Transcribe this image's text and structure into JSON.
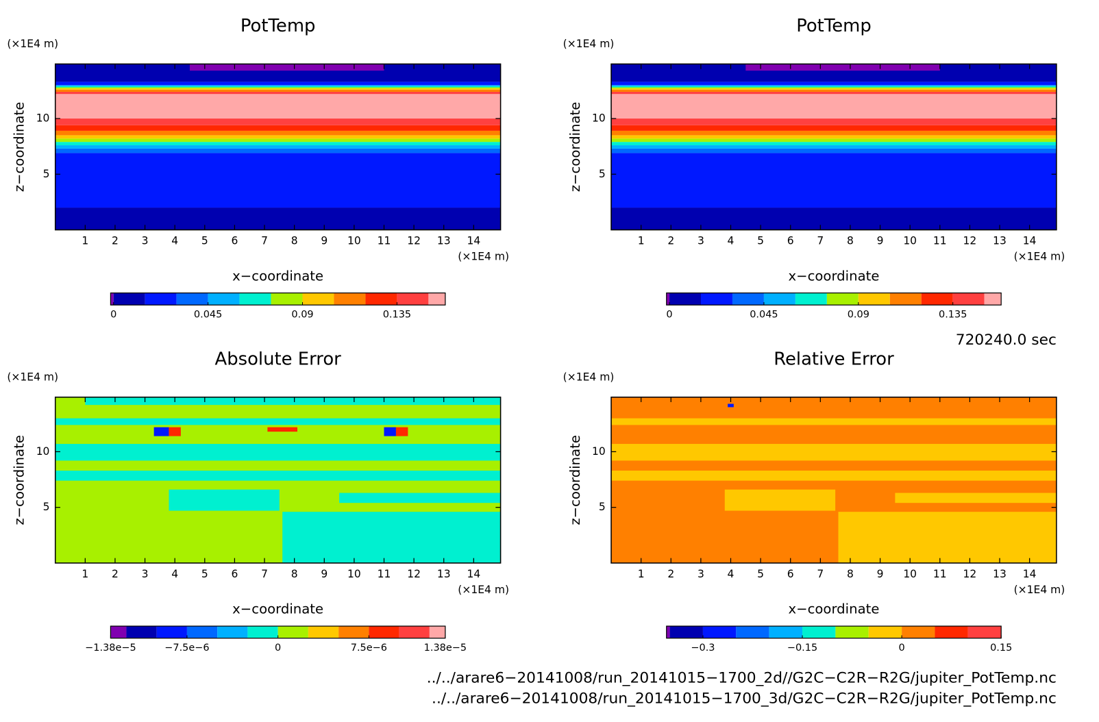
{
  "chart_data": [
    {
      "type": "contour",
      "title": "PotTemp",
      "xlabel": "x−coordinate",
      "ylabel": "z−coordinate",
      "xunit": "(×1E4 m)",
      "yunit": "(×1E4 m)",
      "xlim": [
        0,
        14.9
      ],
      "ylim": [
        0,
        14.9
      ],
      "xticks": [
        1,
        2,
        3,
        4,
        5,
        6,
        7,
        8,
        9,
        10,
        11,
        12,
        13,
        14
      ],
      "yticks": [
        5,
        10
      ],
      "colorbar": {
        "bins": [
          -0.0014,
          0,
          0.015,
          0.03,
          0.045,
          0.06,
          0.075,
          0.09,
          0.105,
          0.12,
          0.135,
          0.15,
          0.158
        ],
        "colors": [
          "#8000b0",
          "#0000b0",
          "#0018ff",
          "#0068ff",
          "#00b0ff",
          "#00f0d0",
          "#a8f000",
          "#ffc800",
          "#ff8000",
          "#ff2800",
          "#ff4040",
          "#ffa8a8"
        ],
        "ticks": [
          0,
          0.045,
          0.09,
          0.135
        ]
      },
      "bands": [
        {
          "x": [
            0,
            14.9
          ],
          "z": [
            0,
            2.0
          ],
          "value": 0.008
        },
        {
          "x": [
            0,
            14.9
          ],
          "z": [
            2.0,
            6.9
          ],
          "value": 0.022
        },
        {
          "x": [
            0,
            14.9
          ],
          "z": [
            6.9,
            7.3
          ],
          "value": 0.037
        },
        {
          "x": [
            0,
            14.9
          ],
          "z": [
            7.3,
            7.6
          ],
          "value": 0.052
        },
        {
          "x": [
            0,
            14.9
          ],
          "z": [
            7.6,
            7.9
          ],
          "value": 0.067
        },
        {
          "x": [
            0,
            14.9
          ],
          "z": [
            7.9,
            8.2
          ],
          "value": 0.082
        },
        {
          "x": [
            0,
            14.9
          ],
          "z": [
            8.2,
            8.5
          ],
          "value": 0.097
        },
        {
          "x": [
            0,
            14.9
          ],
          "z": [
            8.5,
            8.9
          ],
          "value": 0.112
        },
        {
          "x": [
            0,
            14.9
          ],
          "z": [
            8.9,
            9.4
          ],
          "value": 0.127
        },
        {
          "x": [
            0,
            14.9
          ],
          "z": [
            9.4,
            10.0
          ],
          "value": 0.142
        },
        {
          "x": [
            0,
            14.9
          ],
          "z": [
            10.0,
            12.2
          ],
          "value": 0.154
        },
        {
          "x": [
            0,
            14.9
          ],
          "z": [
            12.2,
            12.4
          ],
          "value": 0.142
        },
        {
          "x": [
            0,
            14.9
          ],
          "z": [
            12.4,
            12.6
          ],
          "value": 0.112
        },
        {
          "x": [
            0,
            14.9
          ],
          "z": [
            12.6,
            12.7
          ],
          "value": 0.097
        },
        {
          "x": [
            0,
            14.9
          ],
          "z": [
            12.7,
            12.8
          ],
          "value": 0.082
        },
        {
          "x": [
            0,
            14.9
          ],
          "z": [
            12.8,
            12.9
          ],
          "value": 0.067
        },
        {
          "x": [
            0,
            14.9
          ],
          "z": [
            12.9,
            13.0
          ],
          "value": 0.052
        },
        {
          "x": [
            0,
            14.9
          ],
          "z": [
            13.0,
            13.3
          ],
          "value": 0.022
        },
        {
          "x": [
            0,
            14.9
          ],
          "z": [
            13.3,
            14.9
          ],
          "value": 0.008
        },
        {
          "x": [
            4.5,
            11.0
          ],
          "z": [
            14.3,
            14.9
          ],
          "value": -0.0007
        }
      ]
    },
    {
      "type": "contour",
      "title": "PotTemp",
      "xlabel": "x−coordinate",
      "ylabel": "z−coordinate",
      "xunit": "(×1E4 m)",
      "yunit": "(×1E4 m)",
      "xlim": [
        0,
        14.9
      ],
      "ylim": [
        0,
        14.9
      ],
      "xticks": [
        1,
        2,
        3,
        4,
        5,
        6,
        7,
        8,
        9,
        10,
        11,
        12,
        13,
        14
      ],
      "yticks": [
        5,
        10
      ],
      "colorbar": {
        "bins": [
          -0.0014,
          0,
          0.015,
          0.03,
          0.045,
          0.06,
          0.075,
          0.09,
          0.105,
          0.12,
          0.135,
          0.15,
          0.158
        ],
        "colors": [
          "#8000b0",
          "#0000b0",
          "#0018ff",
          "#0068ff",
          "#00b0ff",
          "#00f0d0",
          "#a8f000",
          "#ffc800",
          "#ff8000",
          "#ff2800",
          "#ff4040",
          "#ffa8a8"
        ],
        "ticks": [
          0,
          0.045,
          0.09,
          0.135
        ]
      },
      "bands": [
        {
          "x": [
            0,
            14.9
          ],
          "z": [
            0,
            2.0
          ],
          "value": 0.008
        },
        {
          "x": [
            0,
            14.9
          ],
          "z": [
            2.0,
            6.9
          ],
          "value": 0.022
        },
        {
          "x": [
            0,
            14.9
          ],
          "z": [
            6.9,
            7.3
          ],
          "value": 0.037
        },
        {
          "x": [
            0,
            14.9
          ],
          "z": [
            7.3,
            7.6
          ],
          "value": 0.052
        },
        {
          "x": [
            0,
            14.9
          ],
          "z": [
            7.6,
            7.9
          ],
          "value": 0.067
        },
        {
          "x": [
            0,
            14.9
          ],
          "z": [
            7.9,
            8.2
          ],
          "value": 0.082
        },
        {
          "x": [
            0,
            14.9
          ],
          "z": [
            8.2,
            8.5
          ],
          "value": 0.097
        },
        {
          "x": [
            0,
            14.9
          ],
          "z": [
            8.5,
            8.9
          ],
          "value": 0.112
        },
        {
          "x": [
            0,
            14.9
          ],
          "z": [
            8.9,
            9.4
          ],
          "value": 0.127
        },
        {
          "x": [
            0,
            14.9
          ],
          "z": [
            9.4,
            10.0
          ],
          "value": 0.142
        },
        {
          "x": [
            0,
            14.9
          ],
          "z": [
            10.0,
            12.2
          ],
          "value": 0.154
        },
        {
          "x": [
            0,
            14.9
          ],
          "z": [
            12.2,
            12.4
          ],
          "value": 0.142
        },
        {
          "x": [
            0,
            14.9
          ],
          "z": [
            12.4,
            12.6
          ],
          "value": 0.112
        },
        {
          "x": [
            0,
            14.9
          ],
          "z": [
            12.6,
            12.7
          ],
          "value": 0.097
        },
        {
          "x": [
            0,
            14.9
          ],
          "z": [
            12.7,
            12.8
          ],
          "value": 0.082
        },
        {
          "x": [
            0,
            14.9
          ],
          "z": [
            12.8,
            12.9
          ],
          "value": 0.067
        },
        {
          "x": [
            0,
            14.9
          ],
          "z": [
            12.9,
            13.0
          ],
          "value": 0.052
        },
        {
          "x": [
            0,
            14.9
          ],
          "z": [
            13.0,
            13.3
          ],
          "value": 0.022
        },
        {
          "x": [
            0,
            14.9
          ],
          "z": [
            13.3,
            14.9
          ],
          "value": 0.008
        },
        {
          "x": [
            4.5,
            11.0
          ],
          "z": [
            14.3,
            14.9
          ],
          "value": -0.0007
        }
      ]
    },
    {
      "type": "contour",
      "title": "Absolute Error",
      "xlabel": "x−coordinate",
      "ylabel": "z−coordinate",
      "xunit": "(×1E4 m)",
      "yunit": "(×1E4 m)",
      "xlim": [
        0,
        14.9
      ],
      "ylim": [
        0,
        14.9
      ],
      "xticks": [
        1,
        2,
        3,
        4,
        5,
        6,
        7,
        8,
        9,
        10,
        11,
        12,
        13,
        14
      ],
      "yticks": [
        5,
        10
      ],
      "colorbar": {
        "bins": [
          -1.38e-05,
          -1.25e-05,
          -1e-05,
          -7.5e-06,
          -5e-06,
          -2.5e-06,
          0,
          2.5e-06,
          5e-06,
          7.5e-06,
          1e-05,
          1.25e-05,
          1.38e-05
        ],
        "colors": [
          "#8000b0",
          "#0000b0",
          "#0018ff",
          "#0068ff",
          "#00b0ff",
          "#00f0d0",
          "#a8f000",
          "#ffc800",
          "#ff8000",
          "#ff2800",
          "#ff4040",
          "#ffa8a8"
        ],
        "ticks": [
          {
            "value": -1.38e-05,
            "label": "−1.38e−5"
          },
          {
            "value": -7.5e-06,
            "label": "−7.5e−6"
          },
          0,
          {
            "value": 7.5e-06,
            "label": "7.5e−6"
          },
          {
            "value": 1.38e-05,
            "label": "1.38e−5"
          }
        ]
      },
      "bands": [
        {
          "x": [
            0,
            14.9
          ],
          "z": [
            0,
            14.9
          ],
          "value": 1e-06
        },
        {
          "x": [
            7.6,
            14.9
          ],
          "z": [
            0,
            4.6
          ],
          "value": -1e-06
        },
        {
          "x": [
            3.8,
            7.5
          ],
          "z": [
            4.7,
            6.6
          ],
          "value": -1e-06
        },
        {
          "x": [
            9.5,
            14.9
          ],
          "z": [
            5.4,
            6.3
          ],
          "value": -1e-06
        },
        {
          "x": [
            0,
            14.9
          ],
          "z": [
            7.4,
            8.3
          ],
          "value": -1e-06
        },
        {
          "x": [
            0,
            14.9
          ],
          "z": [
            9.2,
            10.7
          ],
          "value": -1e-06
        },
        {
          "x": [
            0,
            14.9
          ],
          "z": [
            12.4,
            13.0
          ],
          "value": -1e-06
        },
        {
          "x": [
            1.0,
            14.9
          ],
          "z": [
            14.2,
            14.9
          ],
          "value": -1e-06
        },
        {
          "x": [
            3.3,
            3.8
          ],
          "z": [
            11.4,
            12.2
          ],
          "value": -9e-06
        },
        {
          "x": [
            3.8,
            4.2
          ],
          "z": [
            11.4,
            12.2
          ],
          "value": 9e-06
        },
        {
          "x": [
            7.1,
            8.1
          ],
          "z": [
            11.8,
            12.2
          ],
          "value": 9e-06
        },
        {
          "x": [
            11.0,
            11.4
          ],
          "z": [
            11.4,
            12.2
          ],
          "value": -9e-06
        },
        {
          "x": [
            11.4,
            11.8
          ],
          "z": [
            11.4,
            12.2
          ],
          "value": 9e-06
        }
      ]
    },
    {
      "type": "contour",
      "title": "Relative Error",
      "xlabel": "x−coordinate",
      "ylabel": "z−coordinate",
      "xunit": "(×1E4 m)",
      "yunit": "(×1E4 m)",
      "xlim": [
        0,
        14.9
      ],
      "ylim": [
        0,
        14.9
      ],
      "xticks": [
        1,
        2,
        3,
        4,
        5,
        6,
        7,
        8,
        9,
        10,
        11,
        12,
        13,
        14
      ],
      "yticks": [
        5,
        10
      ],
      "colorbar": {
        "bins": [
          -0.355,
          -0.35,
          -0.3,
          -0.25,
          -0.2,
          -0.15,
          -0.1,
          -0.05,
          0,
          0.05,
          0.1,
          0.15
        ],
        "colors": [
          "#8000b0",
          "#0000b0",
          "#0018ff",
          "#0068ff",
          "#00b0ff",
          "#00f0d0",
          "#a8f000",
          "#ffc800",
          "#ff8000",
          "#ff2800",
          "#ff4040"
        ],
        "ticks": [
          {
            "value": -0.3,
            "label": "−0.3"
          },
          {
            "value": -0.15,
            "label": "−0.15"
          },
          0,
          0.15
        ]
      },
      "bands": [
        {
          "x": [
            0,
            14.9
          ],
          "z": [
            0,
            14.9
          ],
          "value": 0.02
        },
        {
          "x": [
            7.6,
            14.9
          ],
          "z": [
            0,
            4.6
          ],
          "value": -0.02
        },
        {
          "x": [
            3.8,
            7.5
          ],
          "z": [
            4.7,
            6.6
          ],
          "value": -0.02
        },
        {
          "x": [
            9.5,
            14.9
          ],
          "z": [
            5.4,
            6.3
          ],
          "value": -0.02
        },
        {
          "x": [
            0,
            14.9
          ],
          "z": [
            7.4,
            8.3
          ],
          "value": -0.02
        },
        {
          "x": [
            0,
            14.9
          ],
          "z": [
            9.2,
            10.7
          ],
          "value": -0.02
        },
        {
          "x": [
            0,
            14.9
          ],
          "z": [
            12.4,
            13.0
          ],
          "value": -0.02
        },
        {
          "x": [
            3.9,
            4.1
          ],
          "z": [
            14.0,
            14.3
          ],
          "value": -0.27
        }
      ]
    }
  ],
  "time": "720240.0 sec",
  "files": [
    "../../arare6−20141008/run_20141015−1700_2d//G2C−C2R−R2G/jupiter_PotTemp.nc",
    "../../arare6−20141008/run_20141015−1700_3d/G2C−C2R−R2G/jupiter_PotTemp.nc"
  ]
}
